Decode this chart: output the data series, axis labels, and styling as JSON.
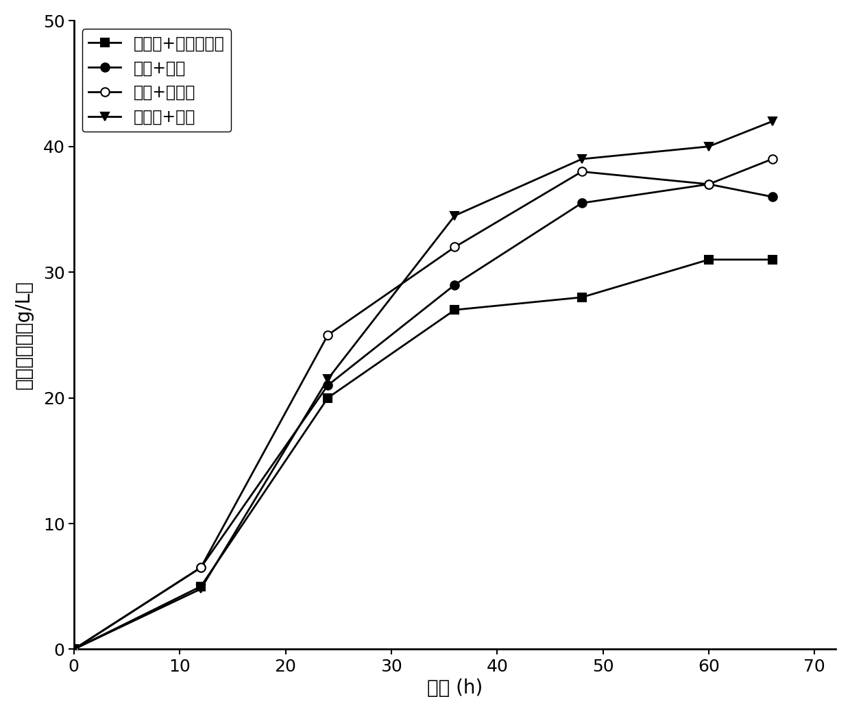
{
  "series": [
    {
      "label": "硫酸铵+大豆蛋白胨",
      "x": [
        0,
        12,
        24,
        36,
        48,
        60,
        66
      ],
      "y": [
        0,
        5.0,
        20.0,
        27.0,
        28.0,
        31.0,
        31.0
      ],
      "marker": "s",
      "marker_fill": "black",
      "linestyle": "-",
      "color": "black",
      "markersize": 9,
      "zorder": 3
    },
    {
      "label": "蔗糖+糖蜜",
      "x": [
        0,
        12,
        24,
        36,
        48,
        60,
        66
      ],
      "y": [
        0,
        6.5,
        21.0,
        29.0,
        35.5,
        37.0,
        36.0
      ],
      "marker": "o",
      "marker_fill": "black",
      "linestyle": "-",
      "color": "black",
      "markersize": 9,
      "zorder": 3
    },
    {
      "label": "蔗糖+甜菜碱",
      "x": [
        0,
        12,
        24,
        36,
        48,
        60,
        66
      ],
      "y": [
        0,
        6.5,
        25.0,
        32.0,
        38.0,
        37.0,
        39.0
      ],
      "marker": "o",
      "marker_fill": "white",
      "linestyle": "-",
      "color": "black",
      "markersize": 9,
      "zorder": 3
    },
    {
      "label": "葡萄糖+糖蜜",
      "x": [
        0,
        12,
        24,
        36,
        48,
        60,
        66
      ],
      "y": [
        0,
        4.8,
        21.5,
        34.5,
        39.0,
        40.0,
        42.0
      ],
      "marker": "v",
      "marker_fill": "black",
      "linestyle": "-",
      "color": "black",
      "markersize": 9,
      "zorder": 3
    }
  ],
  "xlabel": "时间 (h)",
  "ylabel": "赖氨酸产量（g/L）",
  "xlim": [
    0,
    72
  ],
  "ylim": [
    0,
    50
  ],
  "xticks": [
    0,
    10,
    20,
    30,
    40,
    50,
    60,
    70
  ],
  "yticks": [
    0,
    10,
    20,
    30,
    40,
    50
  ],
  "legend_loc": "upper left",
  "background_color": "#ffffff",
  "label_fontsize": 20,
  "tick_fontsize": 18,
  "legend_fontsize": 17
}
